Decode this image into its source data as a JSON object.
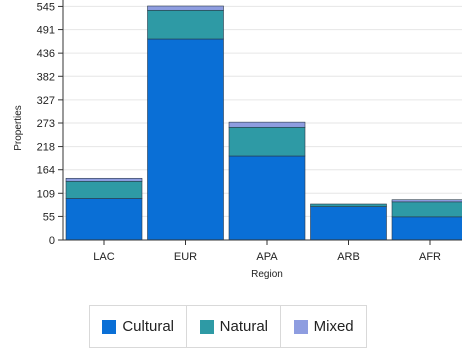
{
  "chart_data": {
    "type": "bar",
    "stacked": true,
    "categories": [
      "LAC",
      "EUR",
      "APA",
      "ARB",
      "AFR"
    ],
    "series": [
      {
        "name": "Cultural",
        "color": "#0a6fd6",
        "values": [
          97,
          469,
          196,
          78,
          54
        ]
      },
      {
        "name": "Natural",
        "color": "#2e9aa5",
        "values": [
          40,
          67,
          67,
          6,
          35
        ]
      },
      {
        "name": "Mixed",
        "color": "#8e9de0",
        "values": [
          7,
          10,
          12,
          0,
          5
        ]
      }
    ],
    "xlabel": "Region",
    "ylabel": "Properties",
    "ylim": [
      0,
      560
    ],
    "yticks": [
      "0",
      "55",
      "109",
      "164",
      "218",
      "273",
      "327",
      "382",
      "436",
      "491",
      "545"
    ],
    "grid": true,
    "legend_position": "bottom"
  }
}
